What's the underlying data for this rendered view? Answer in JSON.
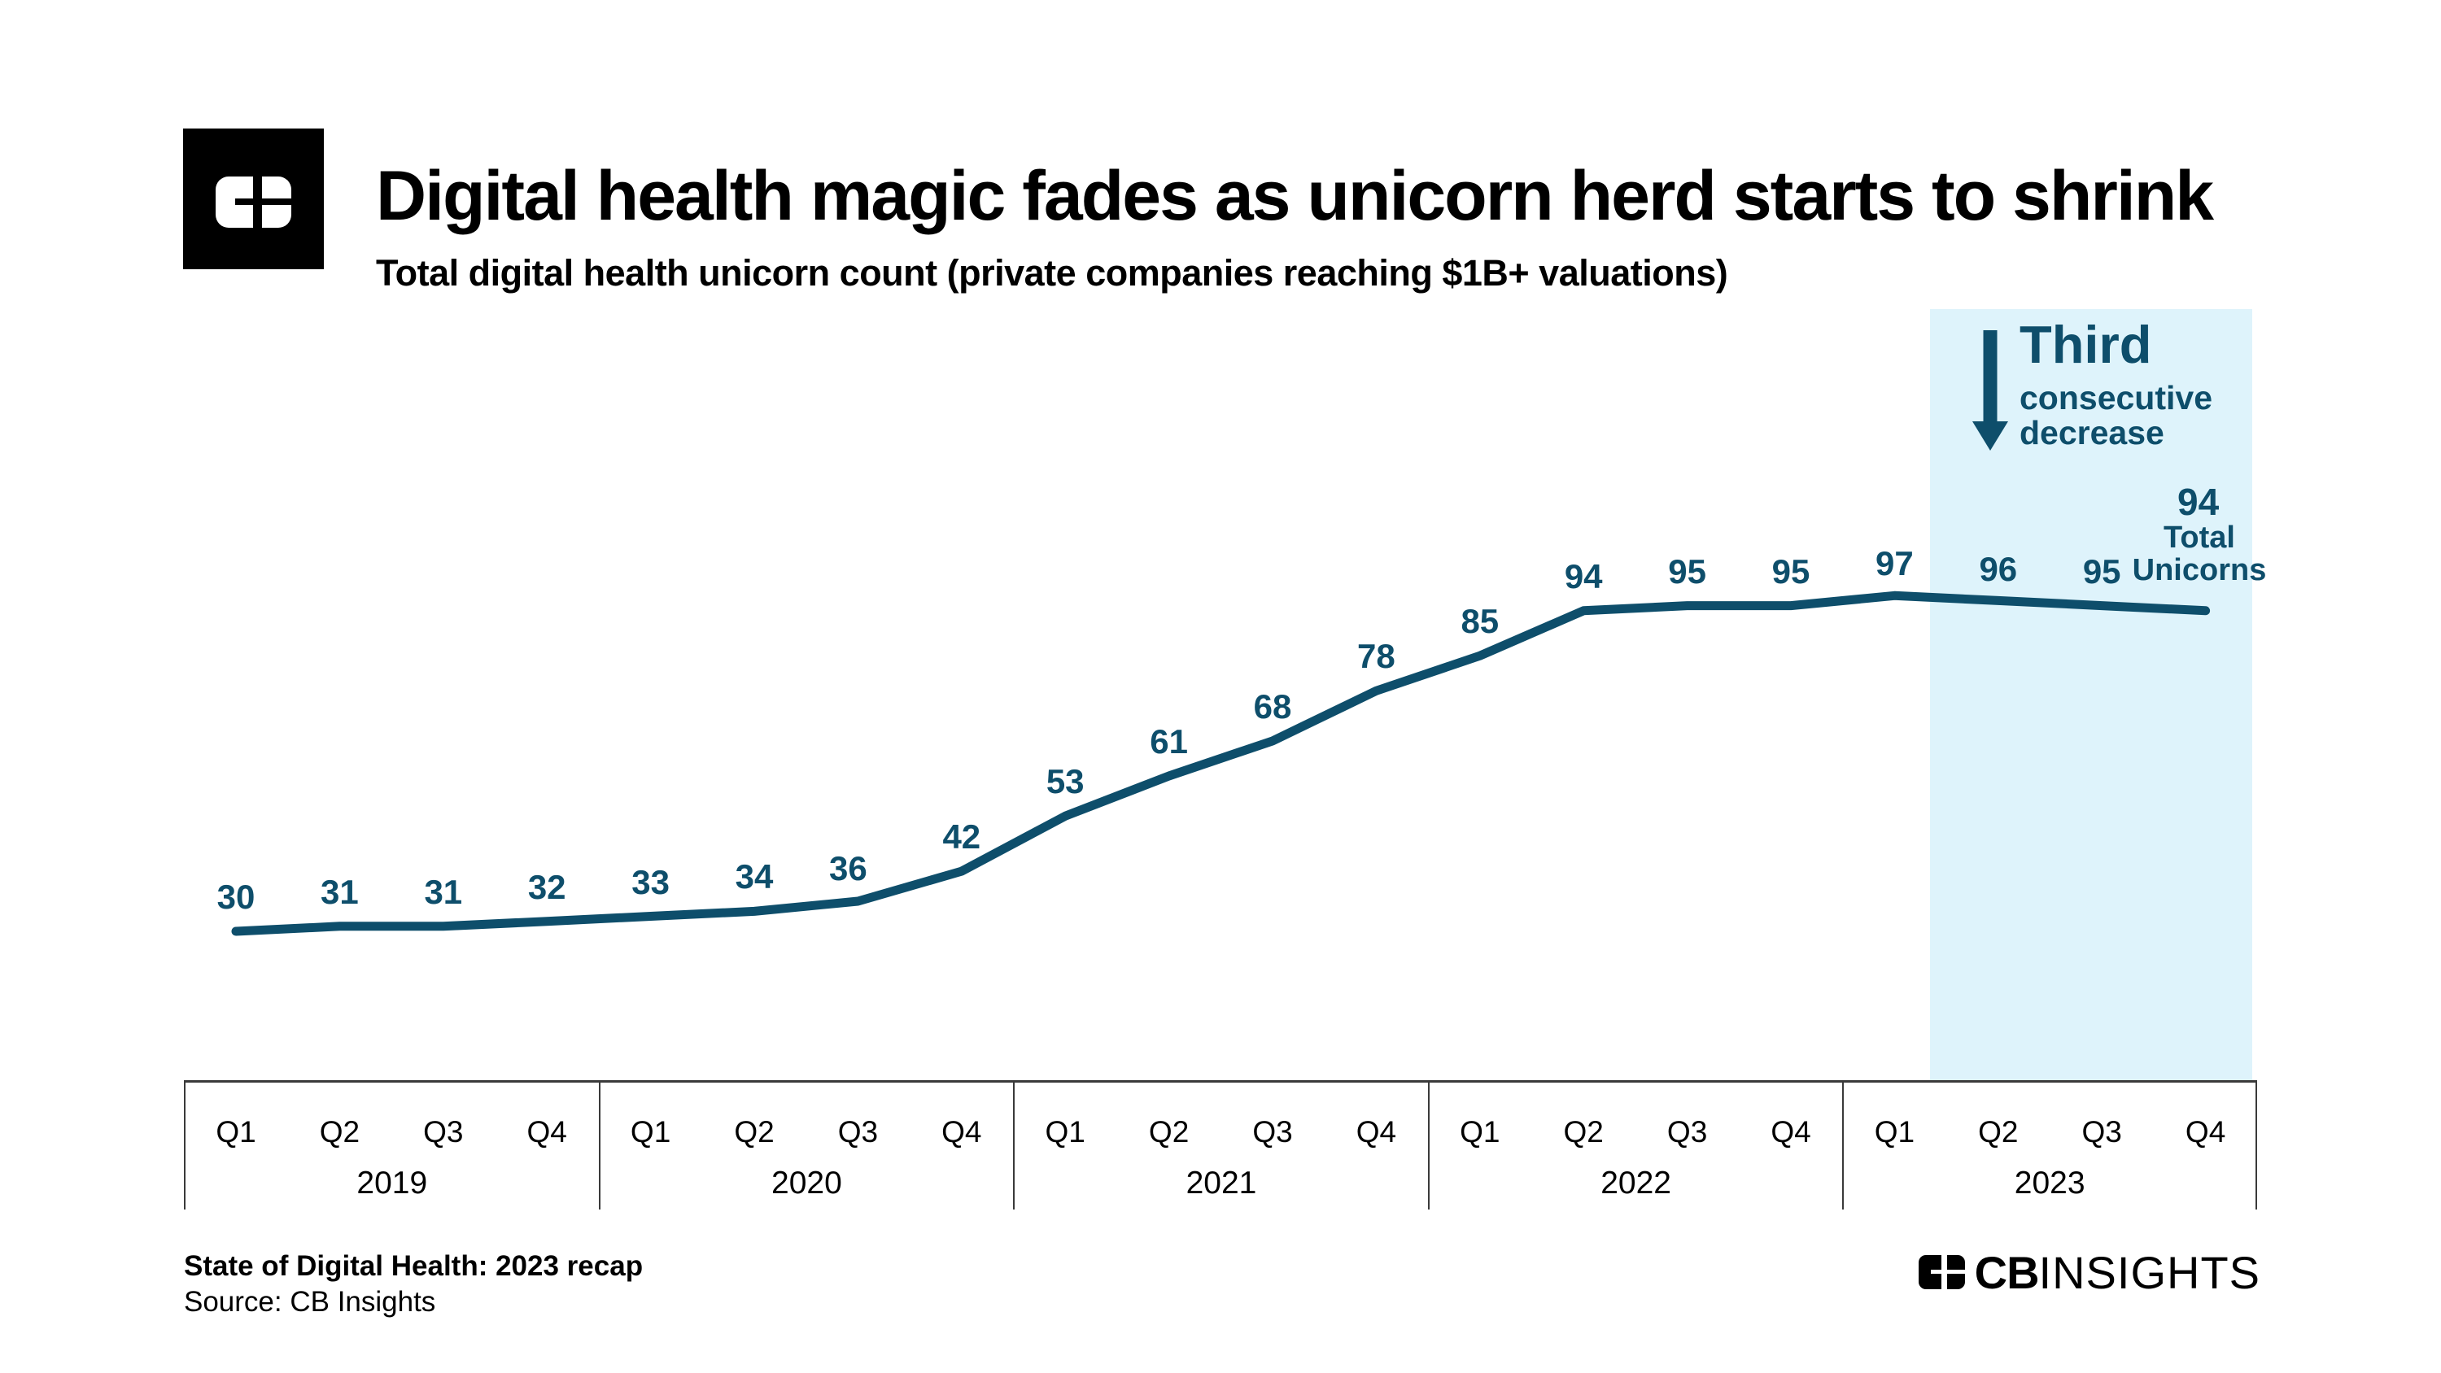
{
  "header": {
    "title": "Digital health magic fades as unicorn herd starts to shrink",
    "subtitle": "Total digital health unicorn count (private companies reaching $1B+ valuations)"
  },
  "annotation": {
    "heading": "Third",
    "sub1": "consecutive",
    "sub2": "decrease",
    "icon": "down-arrow"
  },
  "end_label": {
    "caption_line1": "Total",
    "caption_line2": "Unicorns"
  },
  "chart_data": {
    "type": "line",
    "title": "Digital health magic fades as unicorn herd starts to shrink",
    "subtitle": "Total digital health unicorn count (private companies reaching $1B+ valuations)",
    "xlabel": "",
    "ylabel": "Total digital health unicorn count",
    "y_axis_shown": false,
    "grid": false,
    "legend": false,
    "line_color": "#0e4e6b",
    "highlight_color": "#def3fb",
    "highlight_region": {
      "from": "2023 Q2",
      "to": "2023 Q4",
      "note": "Third consecutive decrease"
    },
    "years": [
      {
        "year": "2019",
        "quarters": [
          "Q1",
          "Q2",
          "Q3",
          "Q4"
        ],
        "values": [
          30,
          31,
          31,
          32
        ]
      },
      {
        "year": "2020",
        "quarters": [
          "Q1",
          "Q2",
          "Q3",
          "Q4"
        ],
        "values": [
          33,
          34,
          36,
          42
        ]
      },
      {
        "year": "2021",
        "quarters": [
          "Q1",
          "Q2",
          "Q3",
          "Q4"
        ],
        "values": [
          53,
          61,
          68,
          78
        ]
      },
      {
        "year": "2022",
        "quarters": [
          "Q1",
          "Q2",
          "Q3",
          "Q4"
        ],
        "values": [
          85,
          94,
          95,
          95
        ]
      },
      {
        "year": "2023",
        "quarters": [
          "Q1",
          "Q2",
          "Q3",
          "Q4"
        ],
        "values": [
          97,
          96,
          95,
          94
        ]
      }
    ],
    "final_value_label": "94 Total Unicorns"
  },
  "footer": {
    "report": "State of Digital Health: 2023 recap",
    "source": "Source: CB Insights",
    "brand_bold": "CB",
    "brand_light": "INSIGHTS"
  },
  "colors": {
    "accent": "#0e4e6b",
    "highlight": "#def3fb",
    "axis_border": "#3a3a3a",
    "text": "#000000",
    "background": "#ffffff"
  }
}
